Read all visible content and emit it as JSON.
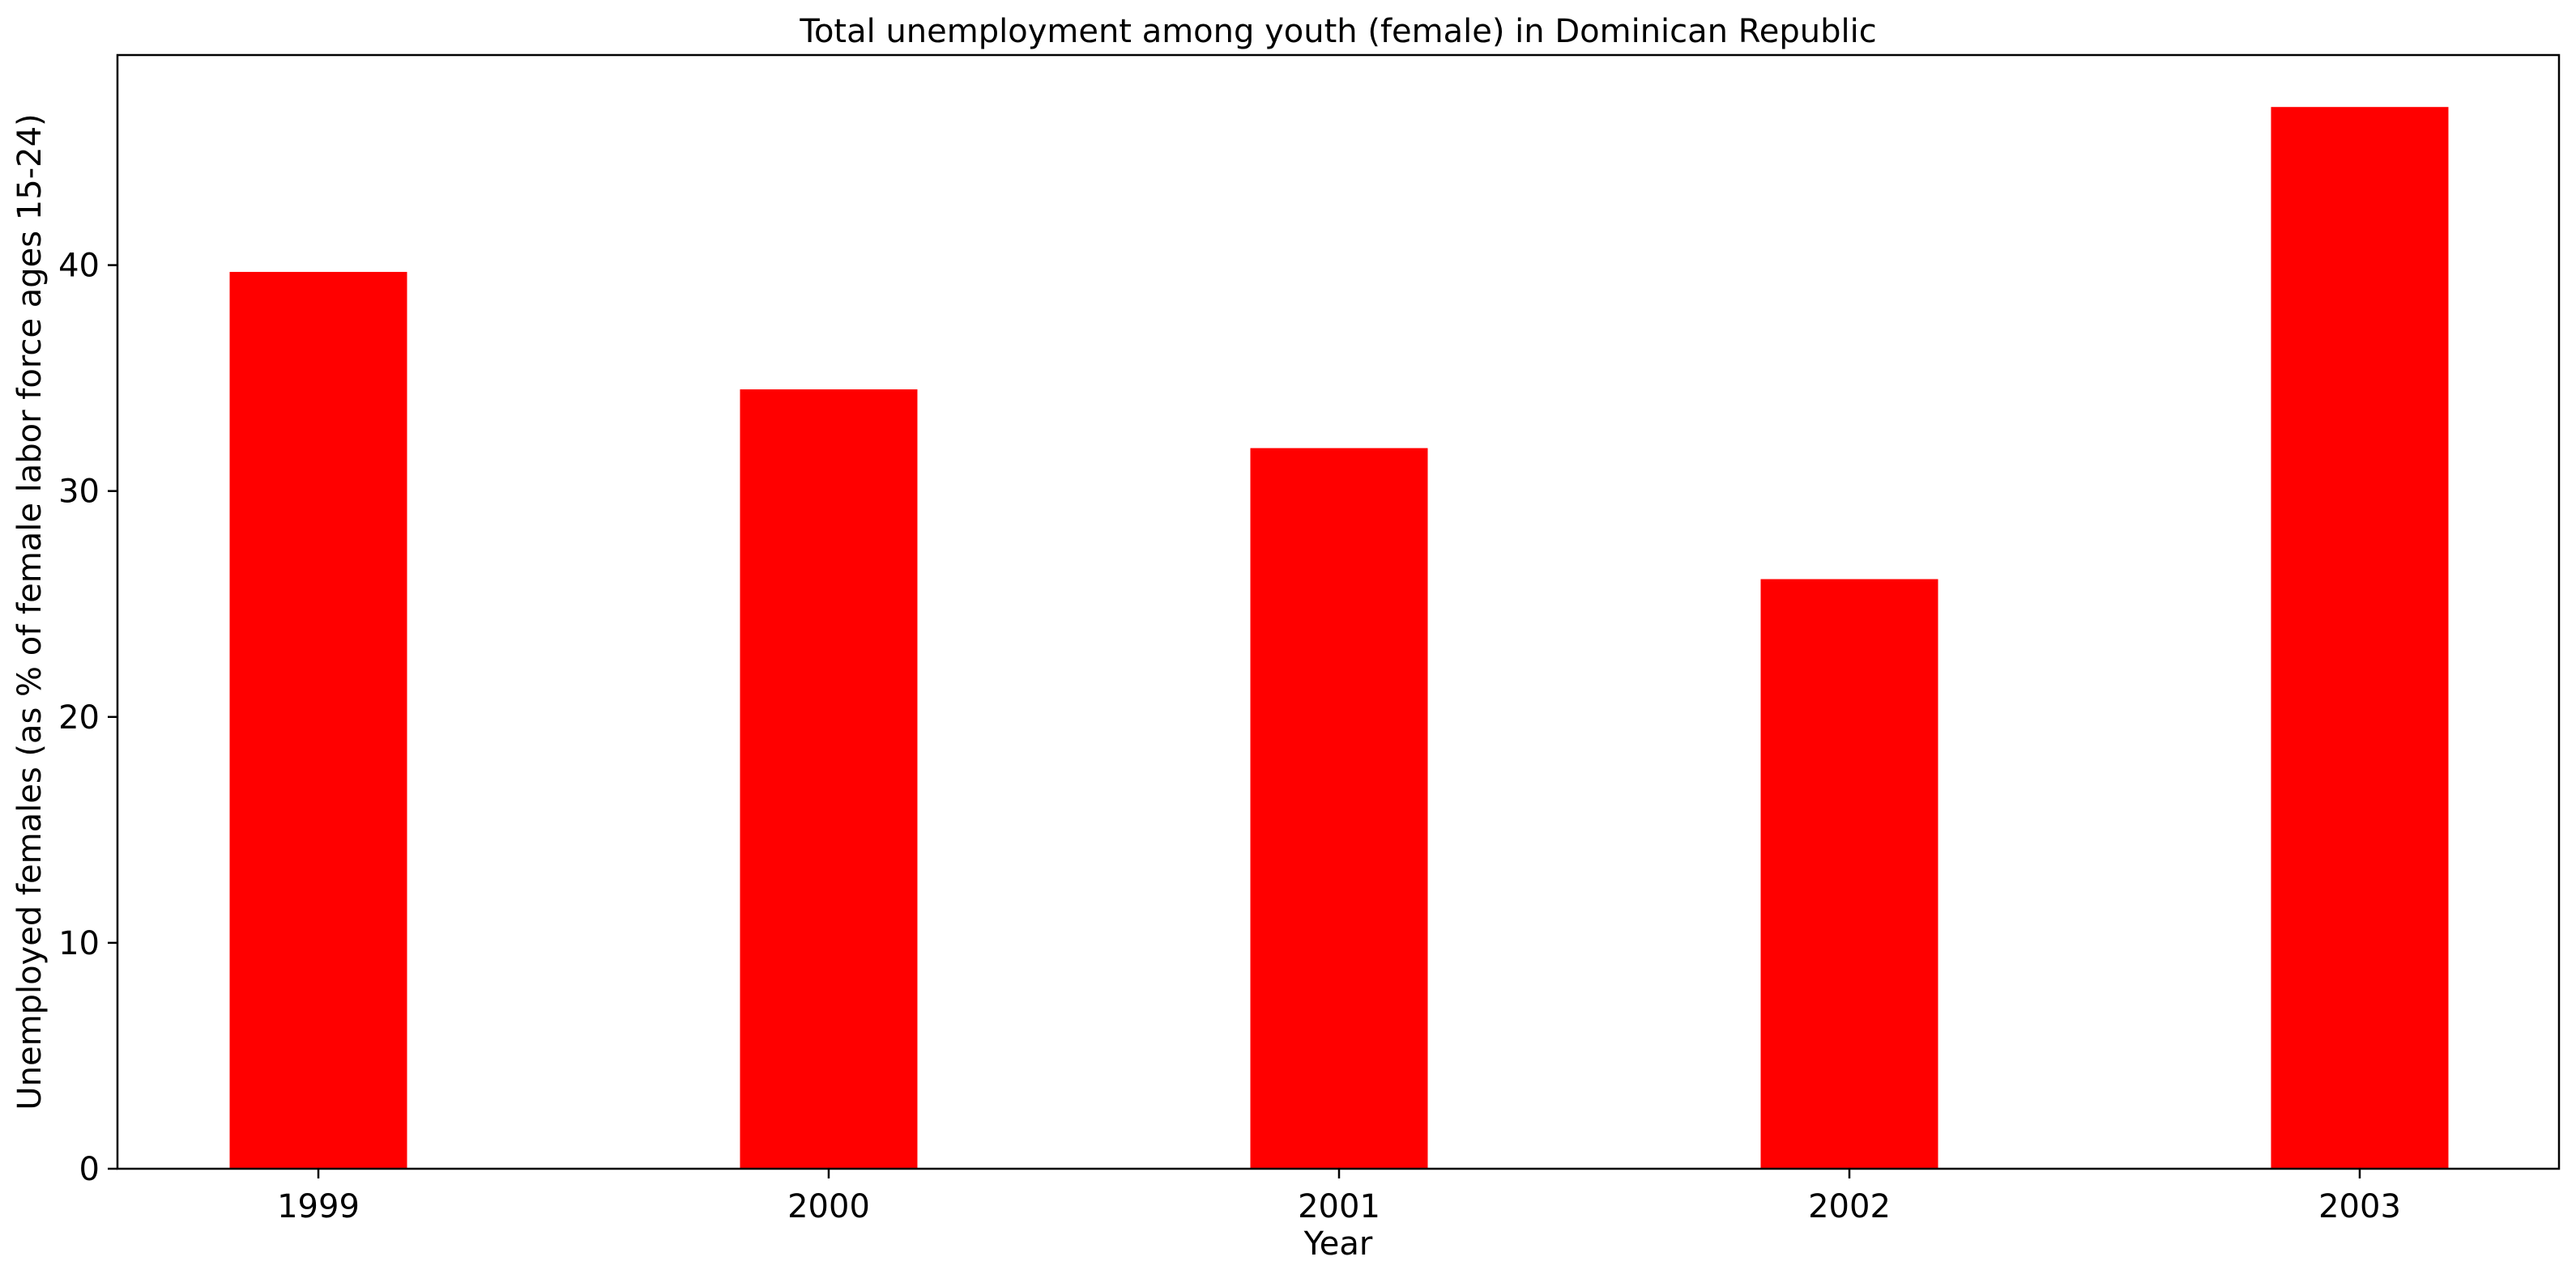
{
  "chart_data": {
    "type": "bar",
    "title": "Total unemployment among youth (female) in Dominican Republic",
    "xlabel": "Year",
    "ylabel": "Unemployed females (as % of female labor force ages 15-24)",
    "categories": [
      "1999",
      "2000",
      "2001",
      "2002",
      "2003"
    ],
    "values": [
      39.7,
      34.5,
      31.9,
      26.1,
      47.0
    ],
    "ylim": [
      0,
      49.3
    ],
    "yticks": [
      0,
      10,
      20,
      30,
      40
    ],
    "bar_color": "#ff0000",
    "grid": false,
    "legend": "none"
  }
}
